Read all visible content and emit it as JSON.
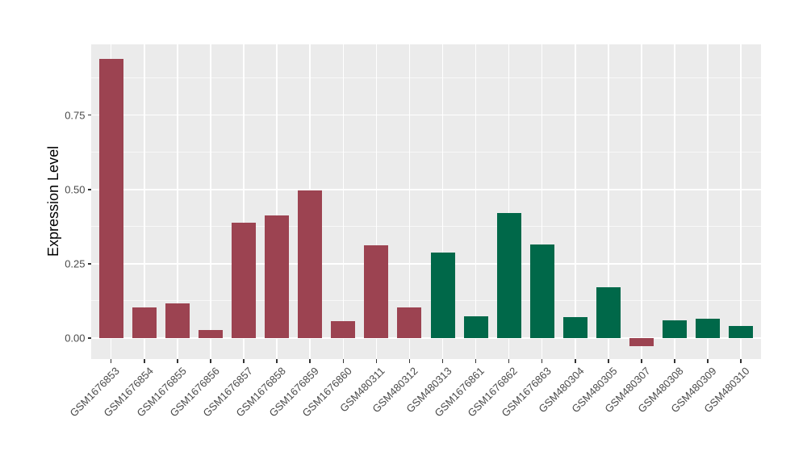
{
  "chart_data": {
    "type": "bar",
    "title": "",
    "xlabel": "",
    "ylabel": "Expression Level",
    "categories": [
      "GSM1676853",
      "GSM1676854",
      "GSM1676855",
      "GSM1676856",
      "GSM1676857",
      "GSM1676858",
      "GSM1676859",
      "GSM1676860",
      "GSM480311",
      "GSM480312",
      "GSM480313",
      "GSM1676861",
      "GSM1676862",
      "GSM1676863",
      "GSM480304",
      "GSM480305",
      "GSM480307",
      "GSM480308",
      "GSM480309",
      "GSM480310"
    ],
    "values": [
      0.94,
      0.102,
      0.118,
      0.027,
      0.389,
      0.413,
      0.497,
      0.058,
      0.311,
      0.102,
      0.289,
      0.073,
      0.421,
      0.314,
      0.071,
      0.171,
      -0.026,
      0.06,
      0.065,
      0.042
    ],
    "bar_groups": [
      "red",
      "red",
      "red",
      "red",
      "red",
      "red",
      "red",
      "red",
      "red",
      "red",
      "green",
      "green",
      "green",
      "green",
      "green",
      "green",
      "red",
      "green",
      "green",
      "green"
    ],
    "bar_colors": {
      "red": "#9C4351",
      "green": "#006849"
    },
    "y_tick_labels": [
      "0.00",
      "0.25",
      "0.50",
      "0.75"
    ],
    "y_tick_values": [
      0,
      0.25,
      0.5,
      0.75
    ],
    "y_minor_values": [
      0.125,
      0.375,
      0.625,
      0.875
    ],
    "ylim": [
      -0.071,
      0.988
    ],
    "grid": true,
    "legend_position": "none",
    "panel_bg": "#EBEBEB",
    "grid_color": "#FFFFFF",
    "tick_mark_color": "#333333",
    "axis_text_color": "#4A4A4A"
  }
}
